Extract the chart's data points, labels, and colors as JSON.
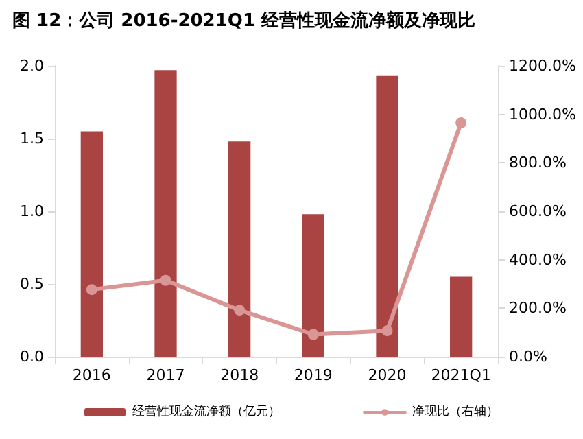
{
  "chart_data": {
    "type": "bar",
    "title": "图 12：公司 2016-2021Q1 经营性现金流净额及净现比",
    "categories": [
      "2016",
      "2017",
      "2018",
      "2019",
      "2020",
      "2021Q1"
    ],
    "series": [
      {
        "name": "经营性现金流净额（亿元）",
        "color": "#a94442",
        "values": [
          1.55,
          1.97,
          1.48,
          0.98,
          1.93,
          0.55
        ]
      },
      {
        "name": "净现比（右轴）",
        "type": "line",
        "axis": "y2",
        "color": "#d99694",
        "values": [
          277,
          315,
          192,
          92,
          107,
          965
        ]
      }
    ],
    "ylim": [
      0,
      2
    ],
    "yticks": [
      {
        "value": 0,
        "label": "0.0"
      },
      {
        "value": 0.5,
        "label": "0.5"
      },
      {
        "value": 1,
        "label": "1.0"
      },
      {
        "value": 1.5,
        "label": "1.5"
      },
      {
        "value": 2,
        "label": "2.0"
      }
    ],
    "y2lim": [
      0,
      1200
    ],
    "y2ticks": [
      {
        "value": 0,
        "label": "0.0%"
      },
      {
        "value": 200,
        "label": "200.0%"
      },
      {
        "value": 400,
        "label": "400.0%"
      },
      {
        "value": 600,
        "label": "600.0%"
      },
      {
        "value": 800,
        "label": "800.0%"
      },
      {
        "value": 1000,
        "label": "1000.0%"
      },
      {
        "value": 1200,
        "label": "1200.0%"
      }
    ],
    "grid": false,
    "legend": "bottom",
    "marker": "circle",
    "line_style": "solid"
  }
}
